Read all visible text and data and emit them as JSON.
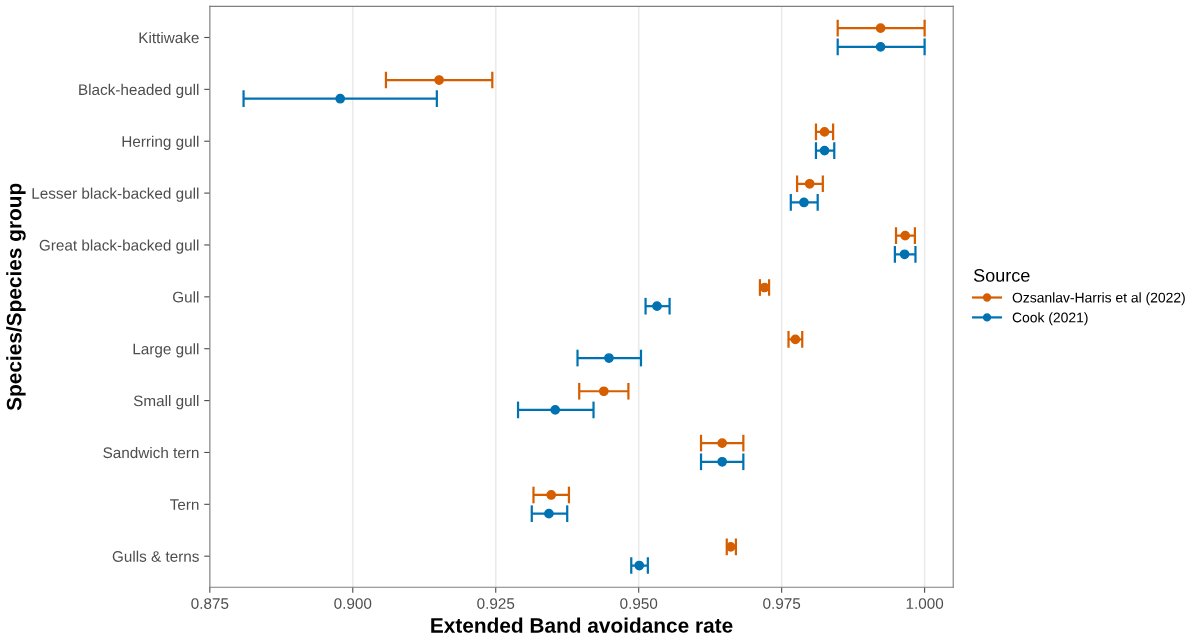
{
  "chart_data": {
    "type": "scatter",
    "orientation": "horizontal",
    "xlabel": "Extended Band avoidance rate",
    "ylabel": "Species/Species group",
    "legend_title": "Source",
    "categories": [
      "Kittiwake",
      "Black-headed gull",
      "Herring gull",
      "Lesser black-backed gull",
      "Great black-backed gull",
      "Gull",
      "Large gull",
      "Small gull",
      "Sandwich tern",
      "Tern",
      "Gulls & terns"
    ],
    "series": [
      {
        "name": "Ozsanlav-Harris et al (2022)",
        "color": "#d55e00",
        "values": [
          0.9923,
          0.9151,
          0.9825,
          0.9799,
          0.9966,
          0.972,
          0.9774,
          0.9439,
          0.9646,
          0.9347,
          0.9661
        ],
        "errors": [
          [
            0.9848,
            1.0
          ],
          [
            0.9058,
            0.9244
          ],
          [
            0.981,
            0.984
          ],
          [
            0.9777,
            0.9822
          ],
          [
            0.995,
            0.9983
          ],
          [
            0.9712,
            0.9728
          ],
          [
            0.9762,
            0.9786
          ],
          [
            0.9396,
            0.9482
          ],
          [
            0.9609,
            0.9683
          ],
          [
            0.9316,
            0.9378
          ],
          [
            0.9654,
            0.967
          ]
        ]
      },
      {
        "name": "Cook (2021)",
        "color": "#0072b2",
        "values": [
          0.9923,
          0.8978,
          0.9825,
          0.9789,
          0.9965,
          0.9532,
          0.9448,
          0.9354,
          0.9646,
          0.9343,
          0.9501
        ],
        "errors": [
          [
            0.9848,
            1.0
          ],
          [
            0.8809,
            0.9147
          ],
          [
            0.981,
            0.9842
          ],
          [
            0.9766,
            0.9813
          ],
          [
            0.9948,
            0.9984
          ],
          [
            0.9512,
            0.9554
          ],
          [
            0.9393,
            0.9504
          ],
          [
            0.9289,
            0.9421
          ],
          [
            0.9609,
            0.9683
          ],
          [
            0.9313,
            0.9375
          ],
          [
            0.9487,
            0.9516
          ]
        ]
      }
    ],
    "xlim": [
      0.875,
      1.005
    ],
    "xticks": [
      {
        "value": 0.875,
        "label": "0.875"
      },
      {
        "value": 0.9,
        "label": "0.900"
      },
      {
        "value": 0.925,
        "label": "0.925"
      },
      {
        "value": 0.95,
        "label": "0.950"
      },
      {
        "value": 0.975,
        "label": "0.975"
      },
      {
        "value": 1.0,
        "label": "1.000"
      }
    ],
    "grid": "x",
    "legend": "right",
    "marker": "circle"
  }
}
